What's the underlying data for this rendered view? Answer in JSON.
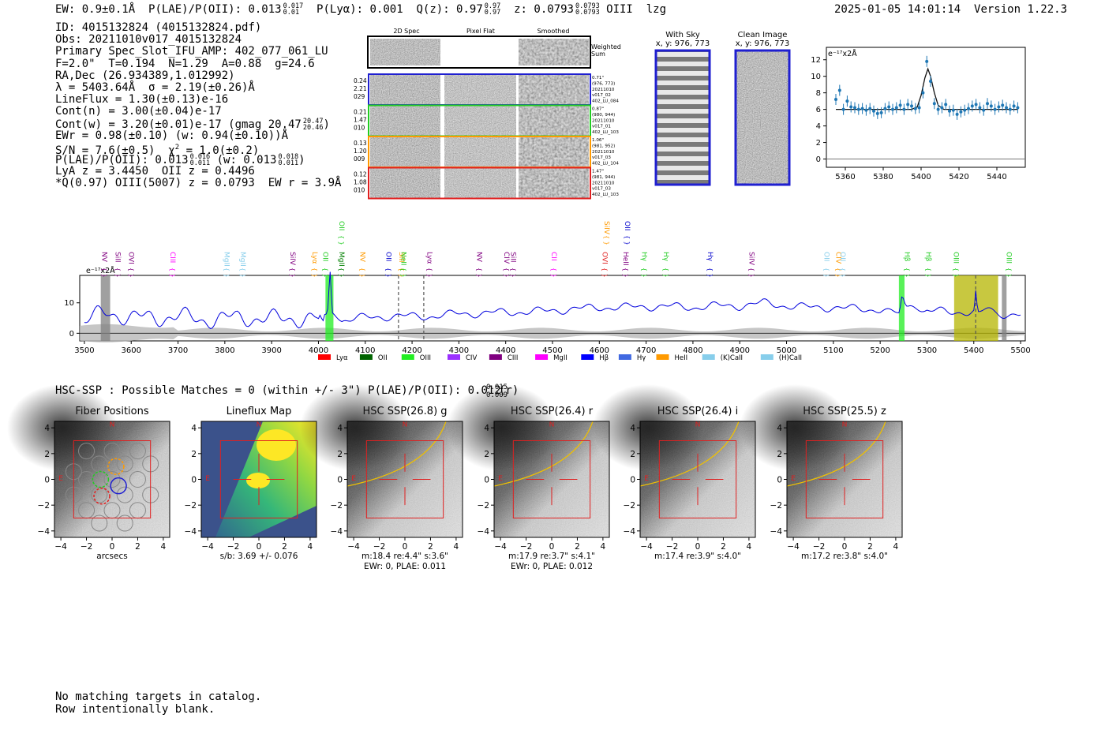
{
  "header": {
    "ew": "EW: 0.9±0.1Å",
    "plae": "P(LAE)/P(OII): 0.013",
    "plae_hi": "0.017",
    "plae_lo": "0.01",
    "plya": "P(Lyα): 0.001",
    "qz": "Q(z): 0.97",
    "qz_hi": "0.97",
    "qz_lo": "0.97",
    "z": "z: 0.0793",
    "z_hi": "0.0793",
    "z_lo": "0.0793",
    "line": "OIII",
    "tag": "lzg",
    "timestamp": "2025-01-05 14:01:14",
    "version": "Version 1.22.3"
  },
  "info": {
    "id": "ID: 4015132824 (4015132824.pdf)",
    "obs": "Obs: 20211010v017_4015132824",
    "primary": "Primary Spec_Slot_IFU_AMP: 402_077_061_LU",
    "fwhm": "F=2.0\"  T=0.194  N=1.29  A=0.88  g=24.6",
    "radec": "RA,Dec (26.934389,1.012992)",
    "lambda": "λ = 5403.64Å  σ = 2.19(±0.26)Å",
    "lineflux": "LineFlux = 1.30(±0.13)e-16",
    "contn": "Cont(n) = 3.00(±0.04)e-17",
    "contw": "Cont(w) = 3.20(±0.01)e-17 (gmag 20.47",
    "contw_hi": "20.47",
    "contw_lo": "20.46",
    "contw_end": ")",
    "ewr": "EWr = 0.98(±0.10) (w: 0.94(±0.10))Å",
    "sn": "S/N = 7.6(±0.5)  χ",
    "sn_sup": "2",
    "sn_end": " = 1.0(±0.2)",
    "plae": "P(LAE)/P(OII): 0.013",
    "plae_hi": "0.016",
    "plae_lo": "0.011",
    "plae_mid": " (w: 0.013",
    "plae_w_hi": "0.018",
    "plae_w_lo": "0.011",
    "plae_end": ")",
    "lya": "LyA z = 3.4450  OII z = 0.4496",
    "q": "*Q(0.97) OIII(5007) z = 0.0793  EW r = 3.9Å"
  },
  "cutouts": {
    "col_headers": [
      "2D Spec",
      "Pixel Flat",
      "Smoothed"
    ],
    "weighted_sum": [
      "Weighted",
      "Sum"
    ],
    "rows": [
      {
        "left": [
          "0.24",
          "2.21",
          "029"
        ],
        "right": [
          "0.71\"",
          "(976, 773)",
          "20211010",
          "v017_02",
          "402_LU_084"
        ],
        "color": "#1f1fd0"
      },
      {
        "left": [
          "0.21",
          "1.47",
          "010"
        ],
        "right": [
          "0.87\"",
          "(980, 944)",
          "20211010",
          "v017_01",
          "402_LU_103"
        ],
        "color": "#22cc22"
      },
      {
        "left": [
          "0.13",
          "1.20",
          "009"
        ],
        "right": [
          "1.06\"",
          "(981, 952)",
          "20211010",
          "v017_03",
          "402_LU_104"
        ],
        "color": "#ff9a00"
      },
      {
        "left": [
          "0.12",
          "1.08",
          "010"
        ],
        "right": [
          "1.47\"",
          "(981, 944)",
          "20211010",
          "v017_03",
          "402_LU_103"
        ],
        "color": "#e02020"
      }
    ],
    "with_sky": [
      "With Sky",
      "x, y: 976, 773"
    ],
    "clean_image": [
      "Clean Image",
      "x, y: 976, 773"
    ]
  },
  "zoom_chart": {
    "unit": "e⁻¹⁷x2Å"
  },
  "spectrum_lines": [
    {
      "label": "NV",
      "color": "#800080",
      "w": 3533
    },
    {
      "label": "SiII",
      "color": "#800080",
      "w": 3562
    },
    {
      "label": "OVI",
      "color": "#800080",
      "w": 3590
    },
    {
      "label": "CIII",
      "color": "#ff00ff",
      "w": 3679
    },
    {
      "label": "MgII",
      "color": "#87ceeb",
      "w": 3794
    },
    {
      "label": "MgII",
      "color": "#87ceeb",
      "w": 3829
    },
    {
      "label": "SiIV",
      "color": "#800080",
      "w": 3935
    },
    {
      "label": "Lyα",
      "color": "#ff9a00",
      "w": 3982
    },
    {
      "label": "OII",
      "color": "#22cc22",
      "w": 4005
    },
    {
      "label": "MgII",
      "color": "#008000",
      "w": 4040
    },
    {
      "label": "NV",
      "color": "#ff9a00",
      "w": 4084
    },
    {
      "label": "OII",
      "color": "#0000cc",
      "w": 4140
    },
    {
      "label": "SiII",
      "color": "#ff9a00",
      "w": 4168
    },
    {
      "label": "NeII",
      "color": "#22cc22",
      "w": 4172
    },
    {
      "label": "Lyα",
      "color": "#800080",
      "w": 4228
    },
    {
      "label": "NV",
      "color": "#800080",
      "w": 4334
    },
    {
      "label": "CIV",
      "color": "#800080",
      "w": 4392
    },
    {
      "label": "SiII",
      "color": "#800080",
      "w": 4406
    },
    {
      "label": "CII",
      "color": "#ff00ff",
      "w": 4493
    },
    {
      "label": "OVI",
      "color": "#e02020",
      "w": 4602
    },
    {
      "label": "HeII",
      "color": "#800080",
      "w": 4647
    },
    {
      "label": "Hγ",
      "color": "#22cc22",
      "w": 4686
    },
    {
      "label": "Hγ",
      "color": "#22cc22",
      "w": 4733
    },
    {
      "label": "Hγ",
      "color": "#0000cc",
      "w": 4827
    },
    {
      "label": "SiIV",
      "color": "#800080",
      "w": 4916
    },
    {
      "label": "OII",
      "color": "#87ceeb",
      "w": 5076
    },
    {
      "label": "CIV",
      "color": "#ff9a00",
      "w": 5101
    },
    {
      "label": "OII",
      "color": "#87ceeb",
      "w": 5110
    },
    {
      "label": "Hβ",
      "color": "#22cc22",
      "w": 5248
    },
    {
      "label": "Hβ",
      "color": "#22cc22",
      "w": 5293
    },
    {
      "label": "OIII",
      "color": "#22cc22",
      "w": 5352
    },
    {
      "label": "OIII",
      "color": "#22cc22",
      "w": 5465
    }
  ],
  "spectrum_upper_lines": [
    {
      "label": "OII",
      "color": "#22cc22",
      "w": 4040
    },
    {
      "label": "SiIV",
      "color": "#ff9a00",
      "w": 4606
    },
    {
      "label": "OII",
      "color": "#0000cc",
      "w": 4650
    }
  ],
  "legend": [
    "Lyα",
    "OII",
    "OIII",
    "CIV",
    "CIII",
    "MgII",
    "Hβ",
    "Hγ",
    "HeII",
    "(K)CaII",
    "(H)CaII"
  ],
  "legend_colors": [
    "#ff0000",
    "#006400",
    "#22ee22",
    "#9b30ff",
    "#800080",
    "#ff00ff",
    "#0000ff",
    "#4169e1",
    "#ff9a00",
    "#87ceeb",
    "#87ceeb"
  ],
  "hsc_line": {
    "text": "HSC-SSP : Possible Matches = 0 (within +/- 3\")  P(LAE)/P(OII): 0.012",
    "hi": "0.015",
    "lo": "0.009",
    "end": " (r)"
  },
  "panels": [
    {
      "title": "Fiber Positions",
      "sub1": "arcsecs",
      "sub2": ""
    },
    {
      "title": "Lineflux Map",
      "sub1": "s/b: 3.69 +/- 0.076",
      "sub2": ""
    },
    {
      "title": "HSC SSP(26.8) g",
      "sub1": "m:18.4  re:4.4\"  s:3.6\"",
      "sub2": "EWr: 0, PLAE: 0.011"
    },
    {
      "title": "HSC SSP(26.4) r",
      "sub1": "m:17.9  re:3.7\"  s:4.1\"",
      "sub2": "EWr: 0, PLAE: 0.012"
    },
    {
      "title": "HSC SSP(26.4) i",
      "sub1": "m:17.4  re:3.9\"  s:4.0\"",
      "sub2": ""
    },
    {
      "title": "HSC SSP(25.5) z",
      "sub1": "m:17.2  re:3.8\"  s:4.0\"",
      "sub2": ""
    }
  ],
  "footer": [
    "No matching targets in catalog.",
    "Row intentionally blank."
  ],
  "chart_data": [
    {
      "type": "scatter",
      "title": "",
      "xlabel": "",
      "ylabel": "e⁻¹⁷x2Å",
      "xlim": [
        5350,
        5455
      ],
      "ylim": [
        -1,
        13.5
      ],
      "xticks": [
        5360,
        5380,
        5400,
        5420,
        5440
      ],
      "yticks": [
        0,
        2,
        4,
        6,
        8,
        10,
        12
      ],
      "series": [
        {
          "x": [
            5355,
            5357,
            5359,
            5361,
            5363,
            5365,
            5367,
            5369,
            5371,
            5373,
            5375,
            5377,
            5379,
            5381,
            5383,
            5385,
            5387,
            5389,
            5391,
            5393,
            5395,
            5397,
            5399,
            5401,
            5403,
            5405,
            5407,
            5409,
            5411,
            5413,
            5415,
            5417,
            5419,
            5421,
            5423,
            5425,
            5427,
            5429,
            5431,
            5433,
            5435,
            5437,
            5439,
            5441,
            5443,
            5445,
            5447,
            5449,
            5451
          ],
          "y": [
            7.2,
            8.3,
            6.0,
            7.0,
            6.3,
            6.2,
            6.0,
            6.1,
            5.9,
            6.1,
            5.8,
            5.5,
            5.6,
            6.1,
            6.3,
            6.0,
            6.2,
            6.5,
            6.0,
            6.6,
            6.4,
            6.1,
            6.2,
            8.0,
            11.8,
            9.4,
            6.7,
            6.0,
            6.2,
            6.6,
            5.8,
            5.9,
            5.4,
            5.7,
            5.9,
            6.1,
            6.4,
            6.6,
            6.2,
            5.9,
            6.7,
            6.4,
            6.0,
            6.3,
            6.5,
            6.2,
            6.0,
            6.4,
            6.2
          ]
        },
        {
          "name": "",
          "x": [
            5355,
            5395,
            5398,
            5400,
            5402,
            5403.6,
            5405,
            5407,
            5409,
            5412,
            5451
          ],
          "y": [
            6.0,
            6.0,
            6.3,
            7.7,
            9.8,
            10.9,
            10.0,
            8.0,
            6.5,
            6.0,
            6.0
          ]
        }
      ]
    },
    {
      "type": "line",
      "title": "",
      "xlabel": "",
      "ylabel": "e⁻¹⁷x2Å",
      "xlim": [
        3490,
        5510
      ],
      "ylim": [
        -2.5,
        19
      ],
      "xticks": [
        3500,
        3600,
        3700,
        3800,
        3900,
        4000,
        4100,
        4200,
        4300,
        4400,
        4500,
        4600,
        4700,
        4800,
        4900,
        5000,
        5100,
        5200,
        5300,
        5400,
        5500
      ],
      "yticks": [
        0,
        10
      ],
      "shaded": [
        {
          "from": 3535,
          "to": 3555,
          "color": "gray"
        },
        {
          "from": 4015,
          "to": 4032,
          "color": "#22ee22"
        },
        {
          "from": 5240,
          "to": 5252,
          "color": "#22ee22"
        },
        {
          "from": 5358,
          "to": 5452,
          "color": "#b5b500"
        },
        {
          "from": 5460,
          "to": 5470,
          "color": "gray"
        }
      ],
      "dashed_lines": [
        4171,
        4225,
        5404
      ],
      "series": [
        {
          "name": "",
          "x": [
            3500,
            3550,
            3600,
            3650,
            3700,
            3750,
            3800,
            3850,
            3900,
            3950,
            4000,
            4010,
            4020,
            4025,
            4030,
            4050,
            4100,
            4150,
            4200,
            4250,
            4300,
            4350,
            4400,
            4450,
            4500,
            4550,
            4600,
            4650,
            4700,
            4750,
            4800,
            4850,
            4900,
            4950,
            5000,
            5050,
            5100,
            5150,
            5200,
            5240,
            5246,
            5260,
            5300,
            5350,
            5400,
            5404,
            5410,
            5450,
            5500
          ],
          "y": [
            4.0,
            7.0,
            5.0,
            5.2,
            5.5,
            4.5,
            4.8,
            5.2,
            4.6,
            5.0,
            4.5,
            4.8,
            9.0,
            20.0,
            6.0,
            4.2,
            5.2,
            5.5,
            5.6,
            5.6,
            6.5,
            6.5,
            7.0,
            7.0,
            7.5,
            8.0,
            8.5,
            8.5,
            8.8,
            8.8,
            8.5,
            9.0,
            9.0,
            10.0,
            9.0,
            8.5,
            8.5,
            8.0,
            7.8,
            7.5,
            11.0,
            7.6,
            7.4,
            7.0,
            7.0,
            13.0,
            7.5,
            6.5,
            6.0
          ]
        }
      ]
    }
  ]
}
